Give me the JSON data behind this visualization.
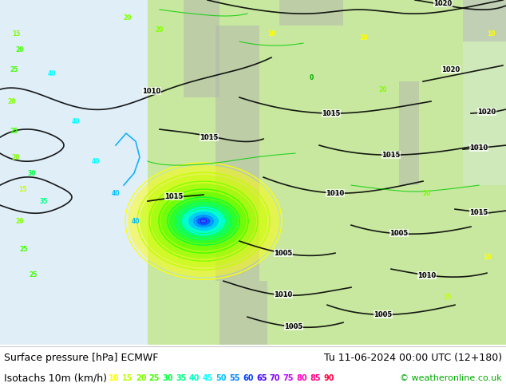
{
  "fig_width": 6.34,
  "fig_height": 4.9,
  "dpi": 100,
  "bg_color": "#ffffff",
  "bottom_bg": "#ffffff",
  "line1_left": "Surface pressure [hPa] ECMWF",
  "line1_right": "Tu 11-06-2024 00:00 UTC (12+180)",
  "line2_left": "Isotachs 10m (km/h)",
  "line2_right": "© weatheronline.co.uk",
  "isotach_labels": [
    "10",
    "15",
    "20",
    "25",
    "30",
    "35",
    "40",
    "45",
    "50",
    "55",
    "60",
    "65",
    "70",
    "75",
    "80",
    "85",
    "90"
  ],
  "isotach_colors": [
    "#ffff00",
    "#bfff00",
    "#80ff00",
    "#40ff00",
    "#00ff40",
    "#00ff80",
    "#00ffbf",
    "#00ffff",
    "#00bfff",
    "#0080ff",
    "#0040ff",
    "#4000ff",
    "#8000ff",
    "#bf00ff",
    "#ff00bf",
    "#ff0080",
    "#ff0040"
  ],
  "text_color": "#000000",
  "copy_color": "#00aa00",
  "font_size_label": 9,
  "font_size_num": 7,
  "map_light_green": "#c8e8a0",
  "map_gray": "#b0b0b0",
  "map_light_gray": "#d8d8d8",
  "map_ocean": "#e0eef8",
  "map_white": "#f0f0f0"
}
